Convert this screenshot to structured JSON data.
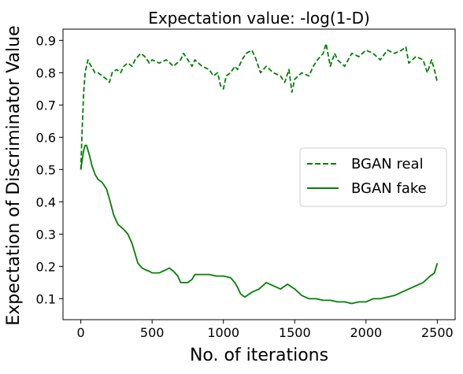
{
  "chart_data": {
    "type": "line",
    "title": "Expectation value: -log(1-D)",
    "xlabel": "No. of iterations",
    "ylabel": "Expectation of Discriminator Value",
    "xlim": [
      -125,
      2625
    ],
    "ylim": [
      0.035,
      0.935
    ],
    "xticks": [
      0,
      500,
      1000,
      1500,
      2000,
      2500
    ],
    "yticks": [
      0.1,
      0.2,
      0.3,
      0.4,
      0.5,
      0.6,
      0.7,
      0.8,
      0.9
    ],
    "grid": false,
    "legend_position": "center-right",
    "series": [
      {
        "name": "BGAN real",
        "style": "dashed",
        "color": "#008000",
        "x": [
          0,
          10,
          20,
          30,
          40,
          50,
          60,
          80,
          100,
          120,
          150,
          180,
          200,
          220,
          250,
          280,
          300,
          330,
          360,
          380,
          400,
          420,
          450,
          480,
          500,
          550,
          600,
          650,
          700,
          720,
          750,
          780,
          800,
          850,
          900,
          930,
          960,
          980,
          1000,
          1020,
          1050,
          1080,
          1100,
          1130,
          1160,
          1200,
          1230,
          1260,
          1300,
          1350,
          1400,
          1430,
          1460,
          1480,
          1500,
          1550,
          1600,
          1630,
          1660,
          1700,
          1720,
          1750,
          1780,
          1800,
          1850,
          1900,
          1950,
          2000,
          2050,
          2100,
          2150,
          2200,
          2250,
          2280,
          2300,
          2350,
          2400,
          2430,
          2460,
          2480,
          2500
        ],
        "y": [
          0.5,
          0.63,
          0.74,
          0.8,
          0.82,
          0.84,
          0.83,
          0.815,
          0.8,
          0.8,
          0.79,
          0.78,
          0.77,
          0.8,
          0.81,
          0.8,
          0.82,
          0.83,
          0.82,
          0.84,
          0.85,
          0.86,
          0.85,
          0.83,
          0.84,
          0.83,
          0.84,
          0.82,
          0.84,
          0.86,
          0.84,
          0.82,
          0.84,
          0.82,
          0.81,
          0.79,
          0.8,
          0.76,
          0.75,
          0.79,
          0.8,
          0.82,
          0.81,
          0.84,
          0.86,
          0.87,
          0.84,
          0.8,
          0.82,
          0.8,
          0.79,
          0.77,
          0.81,
          0.74,
          0.78,
          0.8,
          0.79,
          0.82,
          0.84,
          0.86,
          0.89,
          0.82,
          0.86,
          0.84,
          0.82,
          0.86,
          0.85,
          0.87,
          0.86,
          0.84,
          0.87,
          0.86,
          0.87,
          0.88,
          0.83,
          0.85,
          0.84,
          0.8,
          0.84,
          0.81,
          0.77
        ]
      },
      {
        "name": "BGAN fake",
        "style": "solid",
        "color": "#008000",
        "x": [
          0,
          10,
          20,
          30,
          40,
          50,
          60,
          80,
          100,
          120,
          150,
          180,
          200,
          230,
          260,
          300,
          330,
          360,
          380,
          400,
          430,
          450,
          480,
          500,
          550,
          600,
          620,
          650,
          680,
          700,
          750,
          780,
          800,
          850,
          900,
          950,
          1000,
          1050,
          1080,
          1100,
          1120,
          1150,
          1200,
          1250,
          1300,
          1350,
          1400,
          1450,
          1500,
          1550,
          1600,
          1650,
          1700,
          1750,
          1800,
          1850,
          1900,
          1950,
          2000,
          2050,
          2100,
          2150,
          2200,
          2250,
          2300,
          2350,
          2400,
          2450,
          2480,
          2500
        ],
        "y": [
          0.5,
          0.53,
          0.56,
          0.575,
          0.575,
          0.56,
          0.545,
          0.51,
          0.485,
          0.47,
          0.46,
          0.44,
          0.41,
          0.36,
          0.33,
          0.315,
          0.3,
          0.27,
          0.24,
          0.21,
          0.195,
          0.19,
          0.185,
          0.18,
          0.18,
          0.19,
          0.195,
          0.185,
          0.17,
          0.15,
          0.15,
          0.16,
          0.175,
          0.175,
          0.175,
          0.17,
          0.17,
          0.165,
          0.15,
          0.135,
          0.115,
          0.105,
          0.12,
          0.13,
          0.15,
          0.14,
          0.13,
          0.145,
          0.13,
          0.11,
          0.1,
          0.1,
          0.095,
          0.095,
          0.09,
          0.09,
          0.085,
          0.09,
          0.09,
          0.1,
          0.1,
          0.105,
          0.11,
          0.12,
          0.13,
          0.14,
          0.15,
          0.17,
          0.18,
          0.21
        ]
      }
    ]
  },
  "colors": {
    "series": "#008000",
    "axes": "#000000",
    "background": "#ffffff"
  }
}
